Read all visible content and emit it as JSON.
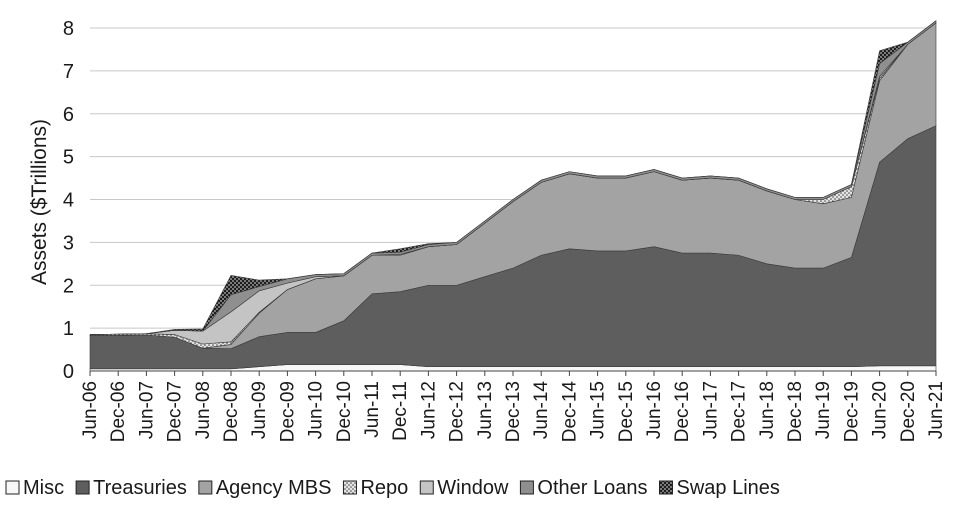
{
  "chart_data": {
    "type": "area",
    "stacked": true,
    "title": "",
    "xlabel": "",
    "ylabel": "Assets ($Trillions)",
    "ylim": [
      0,
      8
    ],
    "yticks": [
      "0",
      "1",
      "2",
      "3",
      "4",
      "5",
      "6",
      "7",
      "8"
    ],
    "grid": "horizontal",
    "legend": "bottom",
    "x": [
      "Jun-06",
      "Dec-06",
      "Jun-07",
      "Dec-07",
      "Jun-08",
      "Dec-08",
      "Jun-09",
      "Dec-09",
      "Jun-10",
      "Dec-10",
      "Jun-11",
      "Dec-11",
      "Jun-12",
      "Dec-12",
      "Jun-13",
      "Dec-13",
      "Jun-14",
      "Dec-14",
      "Jun-15",
      "Dec-15",
      "Jun-16",
      "Dec-16",
      "Jun-17",
      "Dec-17",
      "Jun-18",
      "Dec-18",
      "Jun-19",
      "Dec-19",
      "Jun-20",
      "Dec-20",
      "Jun-21"
    ],
    "series": [
      {
        "name": "Misc",
        "color": "#f7f7f7",
        "pattern": "none",
        "values": [
          0.05,
          0.05,
          0.05,
          0.05,
          0.05,
          0.05,
          0.1,
          0.15,
          0.15,
          0.15,
          0.15,
          0.15,
          0.1,
          0.1,
          0.1,
          0.1,
          0.1,
          0.1,
          0.1,
          0.1,
          0.1,
          0.1,
          0.1,
          0.1,
          0.1,
          0.1,
          0.1,
          0.1,
          0.12,
          0.12,
          0.12
        ]
      },
      {
        "name": "Treasuries",
        "color": "#5e5e5e",
        "pattern": "none",
        "values": [
          0.78,
          0.78,
          0.79,
          0.74,
          0.48,
          0.47,
          0.7,
          0.75,
          0.75,
          1.02,
          1.65,
          1.7,
          1.9,
          1.9,
          2.1,
          2.3,
          2.6,
          2.75,
          2.7,
          2.7,
          2.8,
          2.65,
          2.65,
          2.6,
          2.4,
          2.3,
          2.3,
          2.55,
          4.75,
          5.3,
          5.6
        ]
      },
      {
        "name": "Agency MBS",
        "color": "#a3a3a3",
        "pattern": "none",
        "values": [
          0,
          0,
          0,
          0,
          0,
          0.1,
          0.55,
          1.0,
          1.25,
          1.05,
          0.9,
          0.85,
          0.9,
          0.95,
          1.25,
          1.55,
          1.7,
          1.75,
          1.7,
          1.7,
          1.75,
          1.7,
          1.75,
          1.75,
          1.7,
          1.6,
          1.5,
          1.4,
          1.9,
          2.2,
          2.4
        ]
      },
      {
        "name": "Repo",
        "color": "#d0d0d0",
        "pattern": "dots",
        "values": [
          0.02,
          0.03,
          0.03,
          0.06,
          0.1,
          0.06,
          0.02,
          0.0,
          0.0,
          0.0,
          0.0,
          0.02,
          0.0,
          0.0,
          0.0,
          0.0,
          0.0,
          0.0,
          0.0,
          0.0,
          0.0,
          0.0,
          0.0,
          0.0,
          0.0,
          0.0,
          0.1,
          0.25,
          0.05,
          0.0,
          0.0
        ]
      },
      {
        "name": "Window",
        "color": "#c4c4c4",
        "pattern": "none",
        "values": [
          0,
          0,
          0,
          0.1,
          0.3,
          0.7,
          0.5,
          0.15,
          0.05,
          0,
          0,
          0,
          0,
          0,
          0,
          0,
          0,
          0,
          0,
          0,
          0,
          0,
          0,
          0,
          0,
          0,
          0,
          0,
          0.05,
          0,
          0
        ]
      },
      {
        "name": "Other Loans",
        "color": "#8f8f8f",
        "pattern": "none",
        "values": [
          0,
          0,
          0,
          0,
          0,
          0.4,
          0.1,
          0.1,
          0.05,
          0.05,
          0.05,
          0.05,
          0.05,
          0.05,
          0.05,
          0.05,
          0.05,
          0.05,
          0.05,
          0.05,
          0.05,
          0.05,
          0.05,
          0.05,
          0.05,
          0.05,
          0.05,
          0.05,
          0.3,
          0.05,
          0.05
        ]
      },
      {
        "name": "Swap Lines",
        "color": "#2b2b2b",
        "pattern": "checker",
        "values": [
          0,
          0,
          0,
          0.02,
          0.05,
          0.45,
          0.15,
          0.0,
          0.0,
          0.0,
          0.0,
          0.08,
          0.02,
          0.0,
          0.0,
          0.0,
          0.0,
          0.0,
          0.0,
          0.0,
          0.0,
          0.0,
          0.0,
          0.0,
          0.0,
          0.0,
          0.0,
          0.0,
          0.3,
          0.0,
          0.0
        ]
      }
    ]
  }
}
